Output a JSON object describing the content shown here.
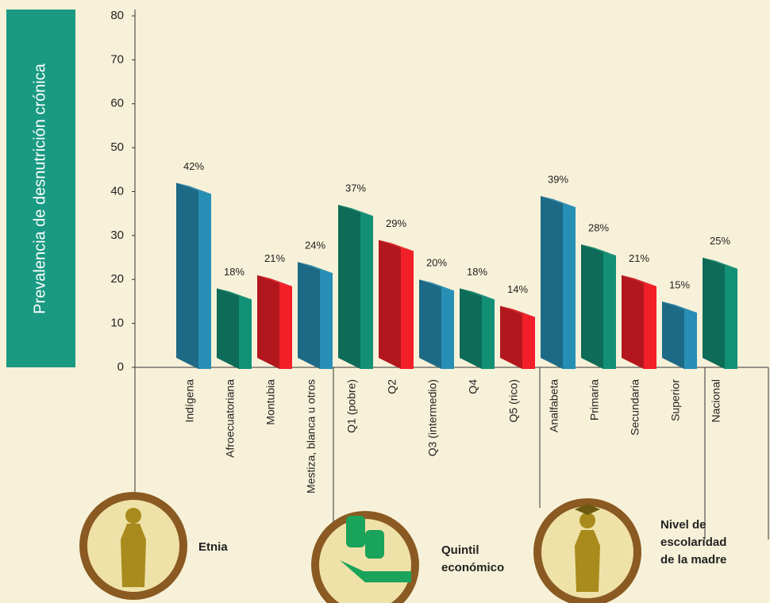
{
  "chart_data": {
    "type": "bar3d",
    "y_label": "Prevalencia de desnutrición crónica",
    "categories": [
      "Indígena",
      "Afroecuatoriana",
      "Montubia",
      "Mestiza, blanca u otros",
      "Q1 (pobre)",
      "Q2",
      "Q3 (intermedio)",
      "Q4",
      "Q5 (rico)",
      "Analfabeta",
      "Primaria",
      "Secundaria",
      "Superior",
      "Nacional"
    ],
    "values": [
      42,
      18,
      21,
      24,
      37,
      29,
      20,
      18,
      14,
      39,
      28,
      21,
      15,
      25
    ],
    "value_labels": [
      "42%",
      "18%",
      "21%",
      "24%",
      "37%",
      "29%",
      "20%",
      "18%",
      "14%",
      "39%",
      "28%",
      "21%",
      "15%",
      "25%"
    ],
    "colors": [
      "#1d6a86",
      "#0d6b57",
      "#b3171e",
      "#1d6a86",
      "#0d6b57",
      "#b3171e",
      "#1d6a86",
      "#0d6b57",
      "#b3171e",
      "#1d6a86",
      "#0d6b57",
      "#b3171e",
      "#1d6a86",
      "#0d6b57"
    ],
    "ylim": [
      0,
      80
    ],
    "yticks": [
      0,
      10,
      20,
      30,
      40,
      50,
      60,
      70,
      80
    ],
    "groups": [
      [
        "Etnia"
      ],
      [
        "Quintil",
        "económico"
      ],
      [
        "Nivel de",
        "escolaridad",
        "de la madre"
      ]
    ]
  }
}
